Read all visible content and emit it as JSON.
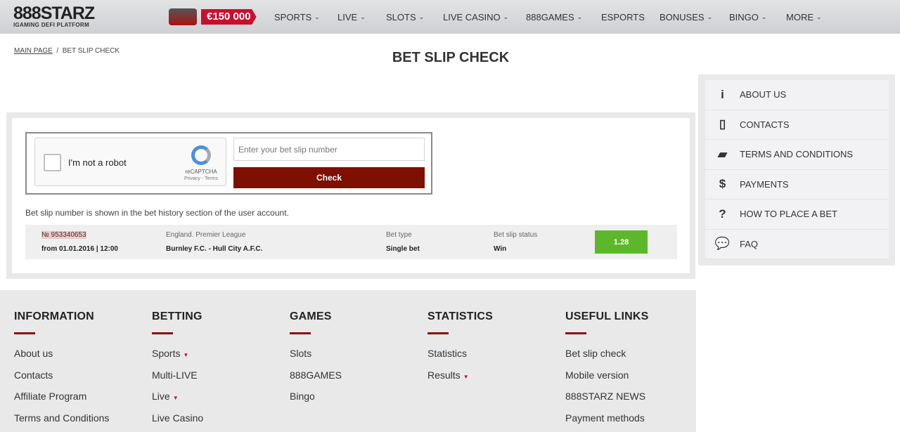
{
  "header": {
    "logo_text": "888STARZ",
    "logo_tagline": "iGaming DeFi Platform",
    "promo_amount": "€150 000",
    "nav": [
      {
        "label": "SPORTS",
        "dropdown": true
      },
      {
        "label": "LIVE",
        "dropdown": true
      },
      {
        "label": "SLOTS",
        "dropdown": true
      },
      {
        "label": "LIVE CASINO",
        "dropdown": true
      },
      {
        "label": "888GAMES",
        "dropdown": true
      },
      {
        "label": "ESPORTS",
        "dropdown": false
      },
      {
        "label": "BONUSES",
        "dropdown": true
      },
      {
        "label": "BINGO",
        "dropdown": true
      },
      {
        "label": "MORE",
        "dropdown": true
      }
    ]
  },
  "breadcrumb": {
    "home": "MAIN PAGE",
    "sep": "/",
    "current": "BET SLIP CHECK"
  },
  "page_title": "BET SLIP CHECK",
  "form": {
    "captcha_label": "I'm not a robot",
    "captcha_brand": "reCAPTCHA",
    "captcha_links": "Privacy - Terms",
    "input_placeholder": "Enter your bet slip number",
    "input_value": "",
    "check_label": "Check",
    "note": "Bet slip number is shown in the bet history section of the user account."
  },
  "result": {
    "number": "№ 953340653",
    "date": "from 01.01.2016 | 12:00",
    "league": "England. Premier League",
    "match": "Burnley F.C. - Hull City A.F.C.",
    "bet_type_label": "Bet type",
    "bet_type": "Single bet",
    "status_label": "Bet slip status",
    "status": "Win",
    "odds": "1.28",
    "odds_color": "#5cb82a"
  },
  "sidebar": [
    {
      "icon": "info-icon",
      "glyph": "i",
      "label": "ABOUT US"
    },
    {
      "icon": "phone-icon",
      "glyph": "▯",
      "label": "CONTACTS"
    },
    {
      "icon": "book-icon",
      "glyph": "▰",
      "label": "TERMS AND CONDITIONS"
    },
    {
      "icon": "dollar-icon",
      "glyph": "$",
      "label": "PAYMENTS"
    },
    {
      "icon": "question-icon",
      "glyph": "?",
      "label": "HOW TO PLACE A BET"
    },
    {
      "icon": "chat-icon",
      "glyph": "💬",
      "label": "FAQ"
    }
  ],
  "footer": [
    {
      "title": "INFORMATION",
      "links": [
        {
          "label": "About us"
        },
        {
          "label": "Contacts"
        },
        {
          "label": "Affiliate Program"
        },
        {
          "label": "Terms and Conditions"
        }
      ]
    },
    {
      "title": "BETTING",
      "links": [
        {
          "label": "Sports",
          "caret": "▼"
        },
        {
          "label": "Multi-LIVE"
        },
        {
          "label": "Live",
          "caret": "▼"
        },
        {
          "label": "Live Casino"
        }
      ]
    },
    {
      "title": "GAMES",
      "links": [
        {
          "label": "Slots"
        },
        {
          "label": "888GAMES"
        },
        {
          "label": "Bingo"
        }
      ]
    },
    {
      "title": "STATISTICS",
      "links": [
        {
          "label": "Statistics"
        },
        {
          "label": "Results",
          "caret": "▼"
        }
      ]
    },
    {
      "title": "USEFUL LINKS",
      "links": [
        {
          "label": "Bet slip check"
        },
        {
          "label": "Mobile version"
        },
        {
          "label": "888STARZ NEWS"
        },
        {
          "label": "Payment methods"
        }
      ]
    }
  ],
  "colors": {
    "accent": "#7d1000",
    "brand_red": "#c8102e"
  }
}
